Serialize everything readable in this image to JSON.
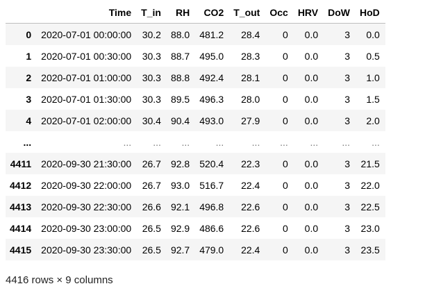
{
  "table": {
    "columns": [
      "",
      "Time",
      "T_in",
      "RH",
      "CO2",
      "T_out",
      "Occ",
      "HRV",
      "DoW",
      "HoD"
    ],
    "rows": [
      [
        "0",
        "2020-07-01 00:00:00",
        "30.2",
        "88.0",
        "481.2",
        "28.4",
        "0",
        "0.0",
        "3",
        "0.0"
      ],
      [
        "1",
        "2020-07-01 00:30:00",
        "30.3",
        "88.7",
        "495.0",
        "28.3",
        "0",
        "0.0",
        "3",
        "0.5"
      ],
      [
        "2",
        "2020-07-01 01:00:00",
        "30.3",
        "88.8",
        "492.4",
        "28.1",
        "0",
        "0.0",
        "3",
        "1.0"
      ],
      [
        "3",
        "2020-07-01 01:30:00",
        "30.3",
        "89.5",
        "496.3",
        "28.0",
        "0",
        "0.0",
        "3",
        "1.5"
      ],
      [
        "4",
        "2020-07-01 02:00:00",
        "30.4",
        "90.4",
        "493.0",
        "27.9",
        "0",
        "0.0",
        "3",
        "2.0"
      ],
      [
        "...",
        "...",
        "...",
        "...",
        "...",
        "...",
        "...",
        "...",
        "...",
        "..."
      ],
      [
        "4411",
        "2020-09-30 21:30:00",
        "26.7",
        "92.8",
        "520.4",
        "22.3",
        "0",
        "0.0",
        "3",
        "21.5"
      ],
      [
        "4412",
        "2020-09-30 22:00:00",
        "26.7",
        "93.0",
        "516.7",
        "22.4",
        "0",
        "0.0",
        "3",
        "22.0"
      ],
      [
        "4413",
        "2020-09-30 22:30:00",
        "26.6",
        "92.1",
        "496.8",
        "22.6",
        "0",
        "0.0",
        "3",
        "22.5"
      ],
      [
        "4414",
        "2020-09-30 23:00:00",
        "26.5",
        "92.9",
        "486.6",
        "22.6",
        "0",
        "0.0",
        "3",
        "23.0"
      ],
      [
        "4415",
        "2020-09-30 23:30:00",
        "26.5",
        "92.7",
        "479.0",
        "22.4",
        "0",
        "0.0",
        "3",
        "23.5"
      ]
    ]
  },
  "shape_text": "4416 rows × 9 columns"
}
